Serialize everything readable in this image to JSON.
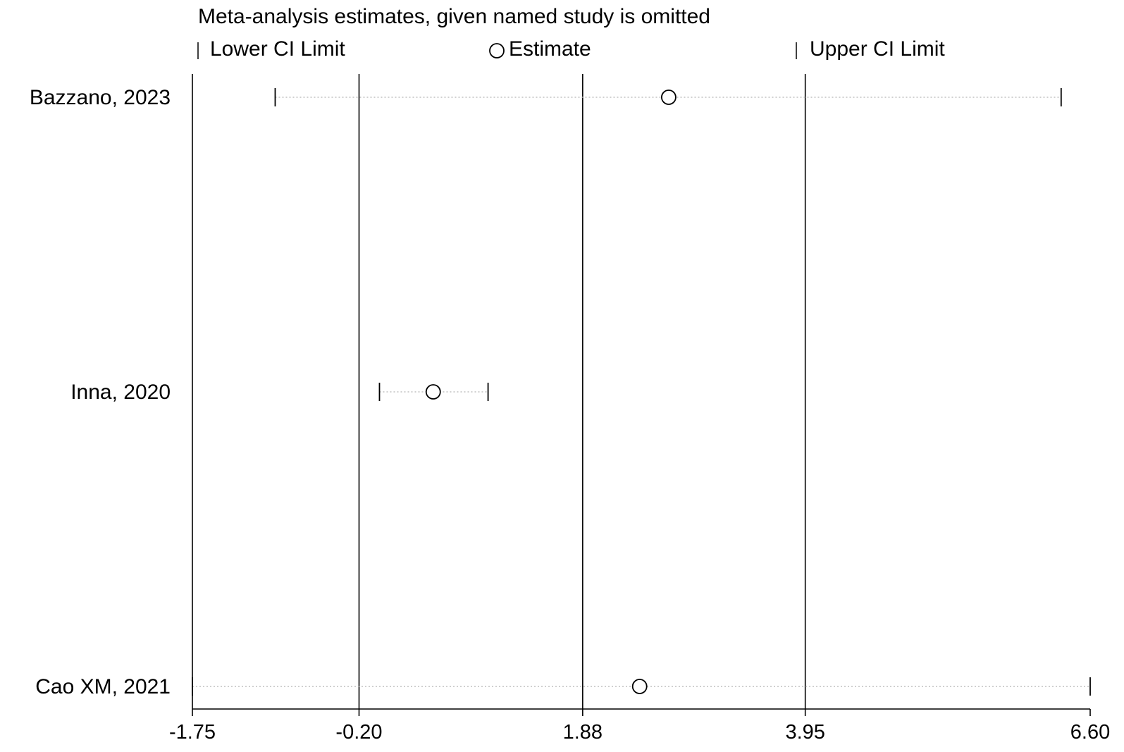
{
  "chart_data": {
    "type": "scatter",
    "title": "Meta-analysis estimates, given named study is omitted",
    "legend": {
      "lower": "Lower CI Limit",
      "estimate": "Estimate",
      "upper": "Upper CI Limit",
      "placement": "top"
    },
    "xlim": [
      -1.75,
      6.6
    ],
    "x_ticks": [
      {
        "value": -1.75,
        "label": "-1.75"
      },
      {
        "value": -0.2,
        "label": "-0.20"
      },
      {
        "value": 1.88,
        "label": "1.88"
      },
      {
        "value": 3.95,
        "label": "3.95"
      },
      {
        "value": 6.6,
        "label": "6.60"
      }
    ],
    "reference_lines": [
      -1.75,
      -0.2,
      1.88,
      3.95
    ],
    "studies": [
      {
        "name": "Bazzano, 2023",
        "estimate": 2.68,
        "lower": -0.98,
        "upper": 6.33
      },
      {
        "name": "Inna, 2020",
        "estimate": 0.49,
        "lower": -0.01,
        "upper": 1.0
      },
      {
        "name": "Cao XM, 2021",
        "estimate": 2.41,
        "lower": -1.75,
        "upper": 6.6
      }
    ]
  }
}
